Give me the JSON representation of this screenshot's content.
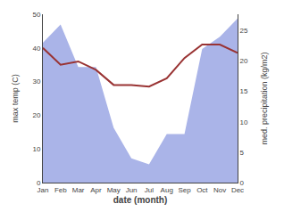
{
  "chart_data": {
    "type": "line",
    "categories": [
      "Jan",
      "Feb",
      "Mar",
      "Apr",
      "May",
      "Jun",
      "Jul",
      "Aug",
      "Sep",
      "Oct",
      "Nov",
      "Dec"
    ],
    "xlabel": "date (month)",
    "ylabel": "max temp (C)",
    "y2label": "med. precipitation (kg/m2)",
    "series": [
      {
        "type": "area",
        "axis": "y2",
        "color": "#aab4e8",
        "values": [
          23,
          26,
          19,
          19,
          9,
          4,
          3,
          8,
          8,
          22,
          24,
          27
        ]
      },
      {
        "type": "line",
        "color": "#993333",
        "values": [
          40,
          35,
          36,
          33.5,
          29,
          29,
          28.5,
          31,
          37,
          41,
          41,
          38.5
        ]
      }
    ],
    "ylim": [
      0,
      50
    ],
    "yticks": [
      0,
      10,
      20,
      30,
      40,
      50
    ],
    "y2lim": [
      0,
      27.7
    ],
    "y2ticks": [
      0,
      5,
      10,
      15,
      20,
      25
    ],
    "grid": false
  }
}
